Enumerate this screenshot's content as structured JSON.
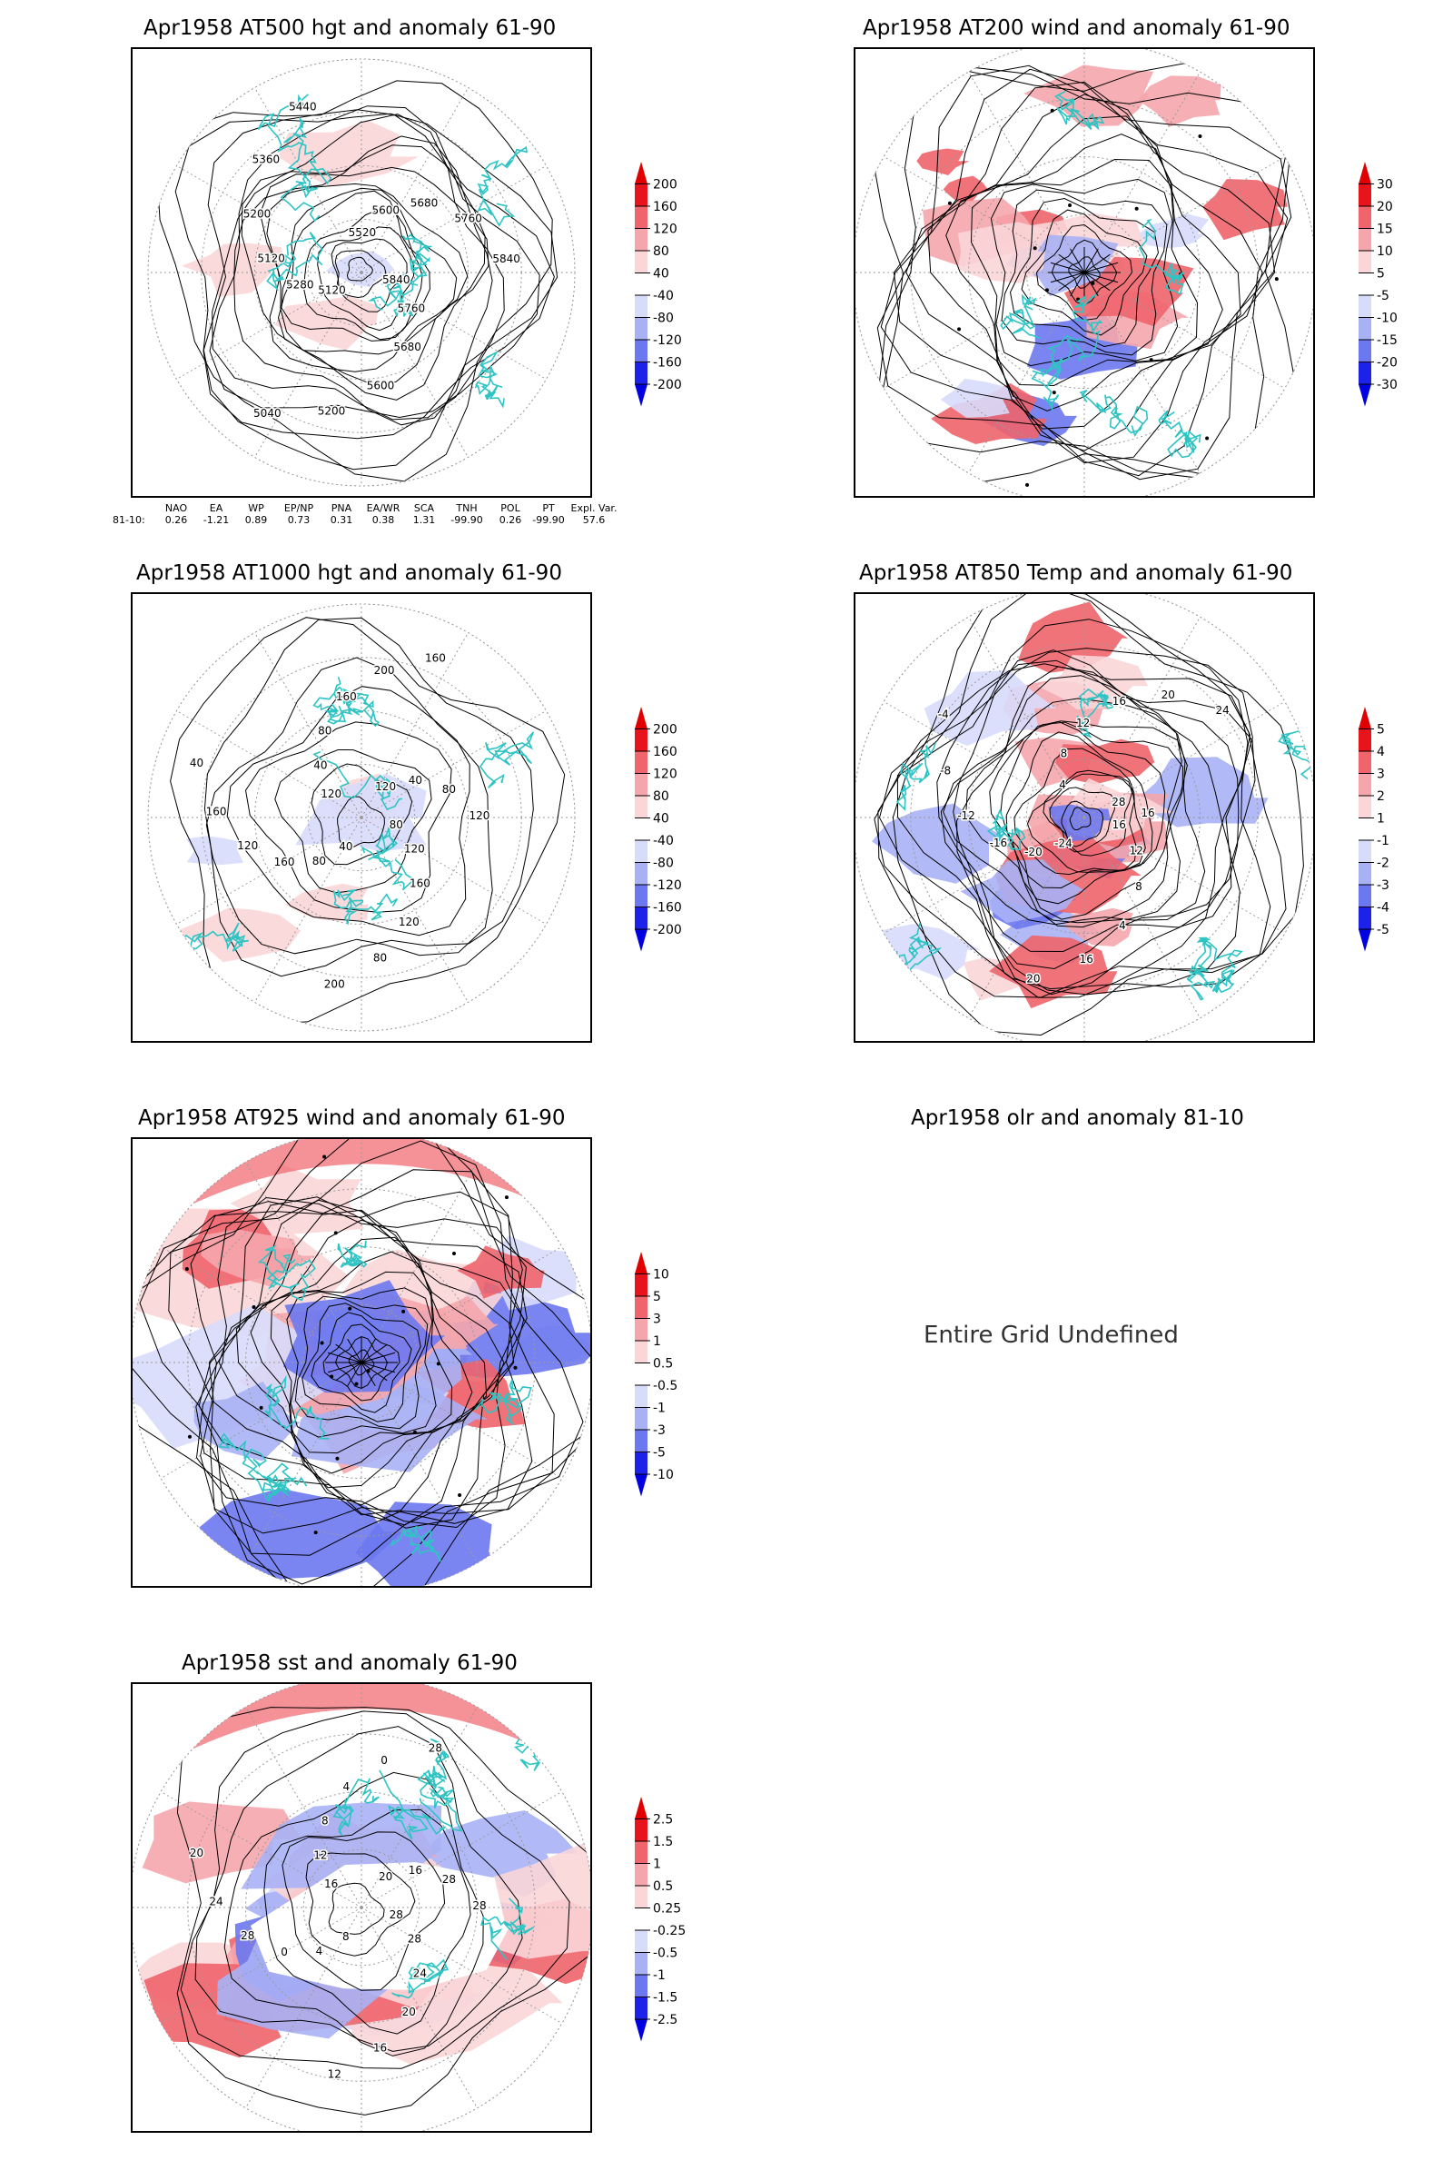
{
  "panels": [
    {
      "title": "Apr1958 AT500 hgt and anomaly 61-90",
      "contour_labels": [
        "5840",
        "5760",
        "5680",
        "5600",
        "5200",
        "5040",
        "5120",
        "5280",
        "5120",
        "5200",
        "5360",
        "5440",
        "5520",
        "5600",
        "5680",
        "5760",
        "5840"
      ],
      "colorbar": [
        "200",
        "160",
        "120",
        "80",
        "40",
        "-40",
        "-80",
        "-120",
        "-160",
        "-200"
      ]
    },
    {
      "title": "Apr1958 AT200 wind and anomaly 61-90",
      "colorbar": [
        "30",
        "20",
        "15",
        "10",
        "5",
        "-5",
        "-10",
        "-15",
        "-20",
        "-30"
      ]
    },
    {
      "title": "Apr1958 AT1000 hgt and anomaly 61-90",
      "contour_labels": [
        "80",
        "120",
        "160",
        "120",
        "80",
        "200",
        "40",
        "80",
        "160",
        "120",
        "160",
        "40",
        "120",
        "40",
        "80",
        "160",
        "200",
        "160",
        "120",
        "40",
        "80",
        "120"
      ],
      "colorbar": [
        "200",
        "160",
        "120",
        "80",
        "40",
        "-40",
        "-80",
        "-120",
        "-160",
        "-200"
      ]
    },
    {
      "title": "Apr1958 AT850 Temp and anomaly 61-90",
      "contour_labels": [
        "16",
        "12",
        "8",
        "4",
        "16",
        "20",
        "-24",
        "-20",
        "-16",
        "-12",
        "-8",
        "-4",
        "4",
        "8",
        "12",
        "16",
        "20",
        "24",
        "28",
        "16"
      ],
      "colorbar": [
        "5",
        "4",
        "3",
        "2",
        "1",
        "-1",
        "-2",
        "-3",
        "-4",
        "-5"
      ]
    },
    {
      "title": "Apr1958 AT925 wind and anomaly 61-90",
      "colorbar": [
        "10",
        "5",
        "3",
        "1",
        "0.5",
        "-0.5",
        "-1",
        "-3",
        "-5",
        "-10"
      ]
    },
    {
      "title": "Apr1958 olr and anomaly 81-10",
      "message": "Entire Grid Undefined"
    },
    {
      "title": "Apr1958 sst and anomaly 61-90",
      "contour_labels": [
        "28",
        "28",
        "24",
        "20",
        "16",
        "12",
        "8",
        "4",
        "0",
        "28",
        "24",
        "20",
        "16",
        "12",
        "8",
        "4",
        "0",
        "28",
        "20",
        "16",
        "28",
        "28"
      ],
      "colorbar": [
        "2.5",
        "1.5",
        "1",
        "0.5",
        "0.25",
        "-0.25",
        "-0.5",
        "-1",
        "-1.5",
        "-2.5"
      ]
    }
  ],
  "indices": {
    "headers": [
      "NAO",
      "EA",
      "WP",
      "EP/NP",
      "PNA",
      "EA/WR",
      "SCA",
      "TNH",
      "POL",
      "PT",
      "Expl. Var."
    ],
    "row_label": "81-10:",
    "values": [
      "0.26",
      "-1.21",
      "0.89",
      "0.73",
      "0.31",
      "0.38",
      "1.31",
      "-99.90",
      "0.26",
      "-99.90",
      "57.6"
    ]
  },
  "colors": {
    "coast": "#2ec4c4",
    "red_strong": "#e8141c",
    "red_mid": "#f0646b",
    "red_light": "#f5a6ac",
    "red_pale": "#fbd6d8",
    "blue_pale": "#d8dcfb",
    "blue_light": "#a9b1f5",
    "blue_mid": "#6b78f0",
    "blue_strong": "#1c22e8",
    "contour": "#000000",
    "grid": "#9a9a9a"
  }
}
